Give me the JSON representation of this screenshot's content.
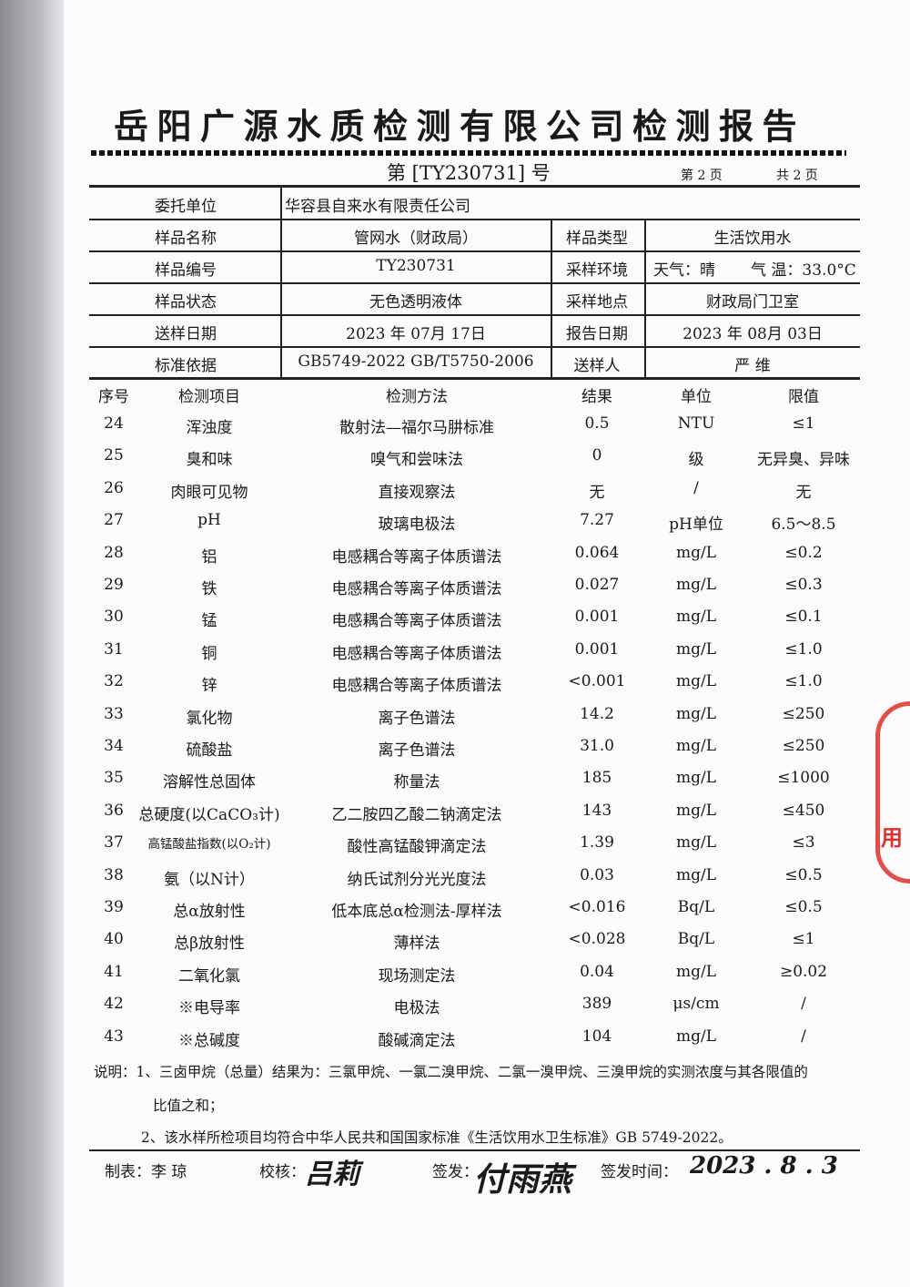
{
  "title": "岳阳广源水质检测有限公司检测报告",
  "report_no": "第 [TY230731] 号",
  "page_current": "第 2 页",
  "page_total": "共 2 页",
  "info": {
    "client_label": "委托单位",
    "client": "华容县自来水有限责任公司",
    "name_label": "样品名称",
    "name": "管网水（财政局）",
    "type_label": "样品类型",
    "type": "生活饮用水",
    "id_label": "样品编号",
    "id": "TY230731",
    "env_label": "采样环境",
    "env_weather": "天气：晴",
    "env_temp": "气 温：33.0°C",
    "state_label": "样品状态",
    "state": "无色透明液体",
    "site_label": "采样地点",
    "site": "财政局门卫室",
    "send_date_label": "送样日期",
    "send_date": "2023 年 07月 17日",
    "report_date_label": "报告日期",
    "report_date": "2023 年 08月 03日",
    "standard_label": "标准依据",
    "standard": "GB5749-2022    GB/T5750-2006",
    "sender_label": "送样人",
    "sender": "严 维"
  },
  "headers": [
    "序号",
    "检测项目",
    "检测方法",
    "结果",
    "单位",
    "限值"
  ],
  "rows": [
    [
      "24",
      "浑浊度",
      "散射法—福尔马肼标准",
      "0.5",
      "NTU",
      "≤1"
    ],
    [
      "25",
      "臭和味",
      "嗅气和尝味法",
      "0",
      "级",
      "无异臭、异味"
    ],
    [
      "26",
      "肉眼可见物",
      "直接观察法",
      "无",
      "/",
      "无"
    ],
    [
      "27",
      "pH",
      "玻璃电极法",
      "7.27",
      "pH单位",
      "6.5～8.5"
    ],
    [
      "28",
      "铝",
      "电感耦合等离子体质谱法",
      "0.064",
      "mg/L",
      "≤0.2"
    ],
    [
      "29",
      "铁",
      "电感耦合等离子体质谱法",
      "0.027",
      "mg/L",
      "≤0.3"
    ],
    [
      "30",
      "锰",
      "电感耦合等离子体质谱法",
      "0.001",
      "mg/L",
      "≤0.1"
    ],
    [
      "31",
      "铜",
      "电感耦合等离子体质谱法",
      "0.001",
      "mg/L",
      "≤1.0"
    ],
    [
      "32",
      "锌",
      "电感耦合等离子体质谱法",
      "<0.001",
      "mg/L",
      "≤1.0"
    ],
    [
      "33",
      "氯化物",
      "离子色谱法",
      "14.2",
      "mg/L",
      "≤250"
    ],
    [
      "34",
      "硫酸盐",
      "离子色谱法",
      "31.0",
      "mg/L",
      "≤250"
    ],
    [
      "35",
      "溶解性总固体",
      "称量法",
      "185",
      "mg/L",
      "≤1000"
    ],
    [
      "36",
      "总硬度(以CaCO₃计)",
      "乙二胺四乙酸二钠滴定法",
      "143",
      "mg/L",
      "≤450"
    ],
    [
      "37",
      "高锰酸盐指数(以O₂计)",
      "酸性高锰酸钾滴定法",
      "1.39",
      "mg/L",
      "≤3"
    ],
    [
      "38",
      "氨（以N计）",
      "纳氏试剂分光光度法",
      "0.03",
      "mg/L",
      "≤0.5"
    ],
    [
      "39",
      "总α放射性",
      "低本底总α检测法-厚样法",
      "<0.016",
      "Bq/L",
      "≤0.5"
    ],
    [
      "40",
      "总β放射性",
      "薄样法",
      "<0.028",
      "Bq/L",
      "≤1"
    ],
    [
      "41",
      "二氧化氯",
      "现场测定法",
      "0.04",
      "mg/L",
      "≥0.02"
    ],
    [
      "42",
      "※电导率",
      "电极法",
      "389",
      "μs/cm",
      "/"
    ],
    [
      "43",
      "※总碱度",
      "酸碱滴定法",
      "104",
      "mg/L",
      "/"
    ]
  ],
  "notes": {
    "line1": "说明：1、三卤甲烷（总量）结果为：三氯甲烷、一氯二溴甲烷、二氯一溴甲烷、三溴甲烷的实测浓度与其各限值的",
    "line1b": "比值之和；",
    "line2": "2、该水样所检项目均符合中华人民共和国国家标准《生活饮用水卫生标准》GB 5749-2022。"
  },
  "footer": {
    "maker_label": "制表：李 琼",
    "checker_label": "校核：",
    "checker_sig": "吕莉",
    "issuer_label": "签发：",
    "issuer_sig": "付雨燕",
    "issue_time_label": "签发时间：",
    "issue_time": "2023 . 8 . 3"
  },
  "stamp_text": "用章",
  "colors": {
    "stamp": "#e0302a",
    "ink": "#1a1a1a"
  }
}
